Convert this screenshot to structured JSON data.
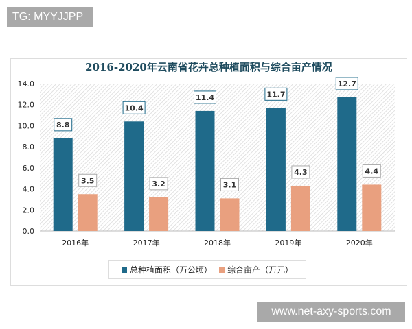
{
  "watermarks": {
    "top": "TG: MYYJJPP",
    "bottom": "www.net-axy-sports.com"
  },
  "chart_data": {
    "type": "bar",
    "title": "2016-2020年云南省花卉总种植面积与综合亩产情况",
    "categories": [
      "2016年",
      "2017年",
      "2018年",
      "2019年",
      "2020年"
    ],
    "series": [
      {
        "name": "总种植面积（万公顷）",
        "values": [
          8.8,
          10.4,
          11.4,
          11.7,
          12.7
        ],
        "color": "#1f6a8a"
      },
      {
        "name": "综合亩产（万元）",
        "values": [
          3.5,
          3.2,
          3.1,
          4.3,
          4.4
        ],
        "color": "#e9a07f"
      }
    ],
    "yticks": [
      "0.0",
      "2.0",
      "4.0",
      "6.0",
      "8.0",
      "10.0",
      "12.0",
      "14.0"
    ],
    "ylim": [
      0,
      14
    ],
    "legend": "bottom",
    "grid": false
  }
}
